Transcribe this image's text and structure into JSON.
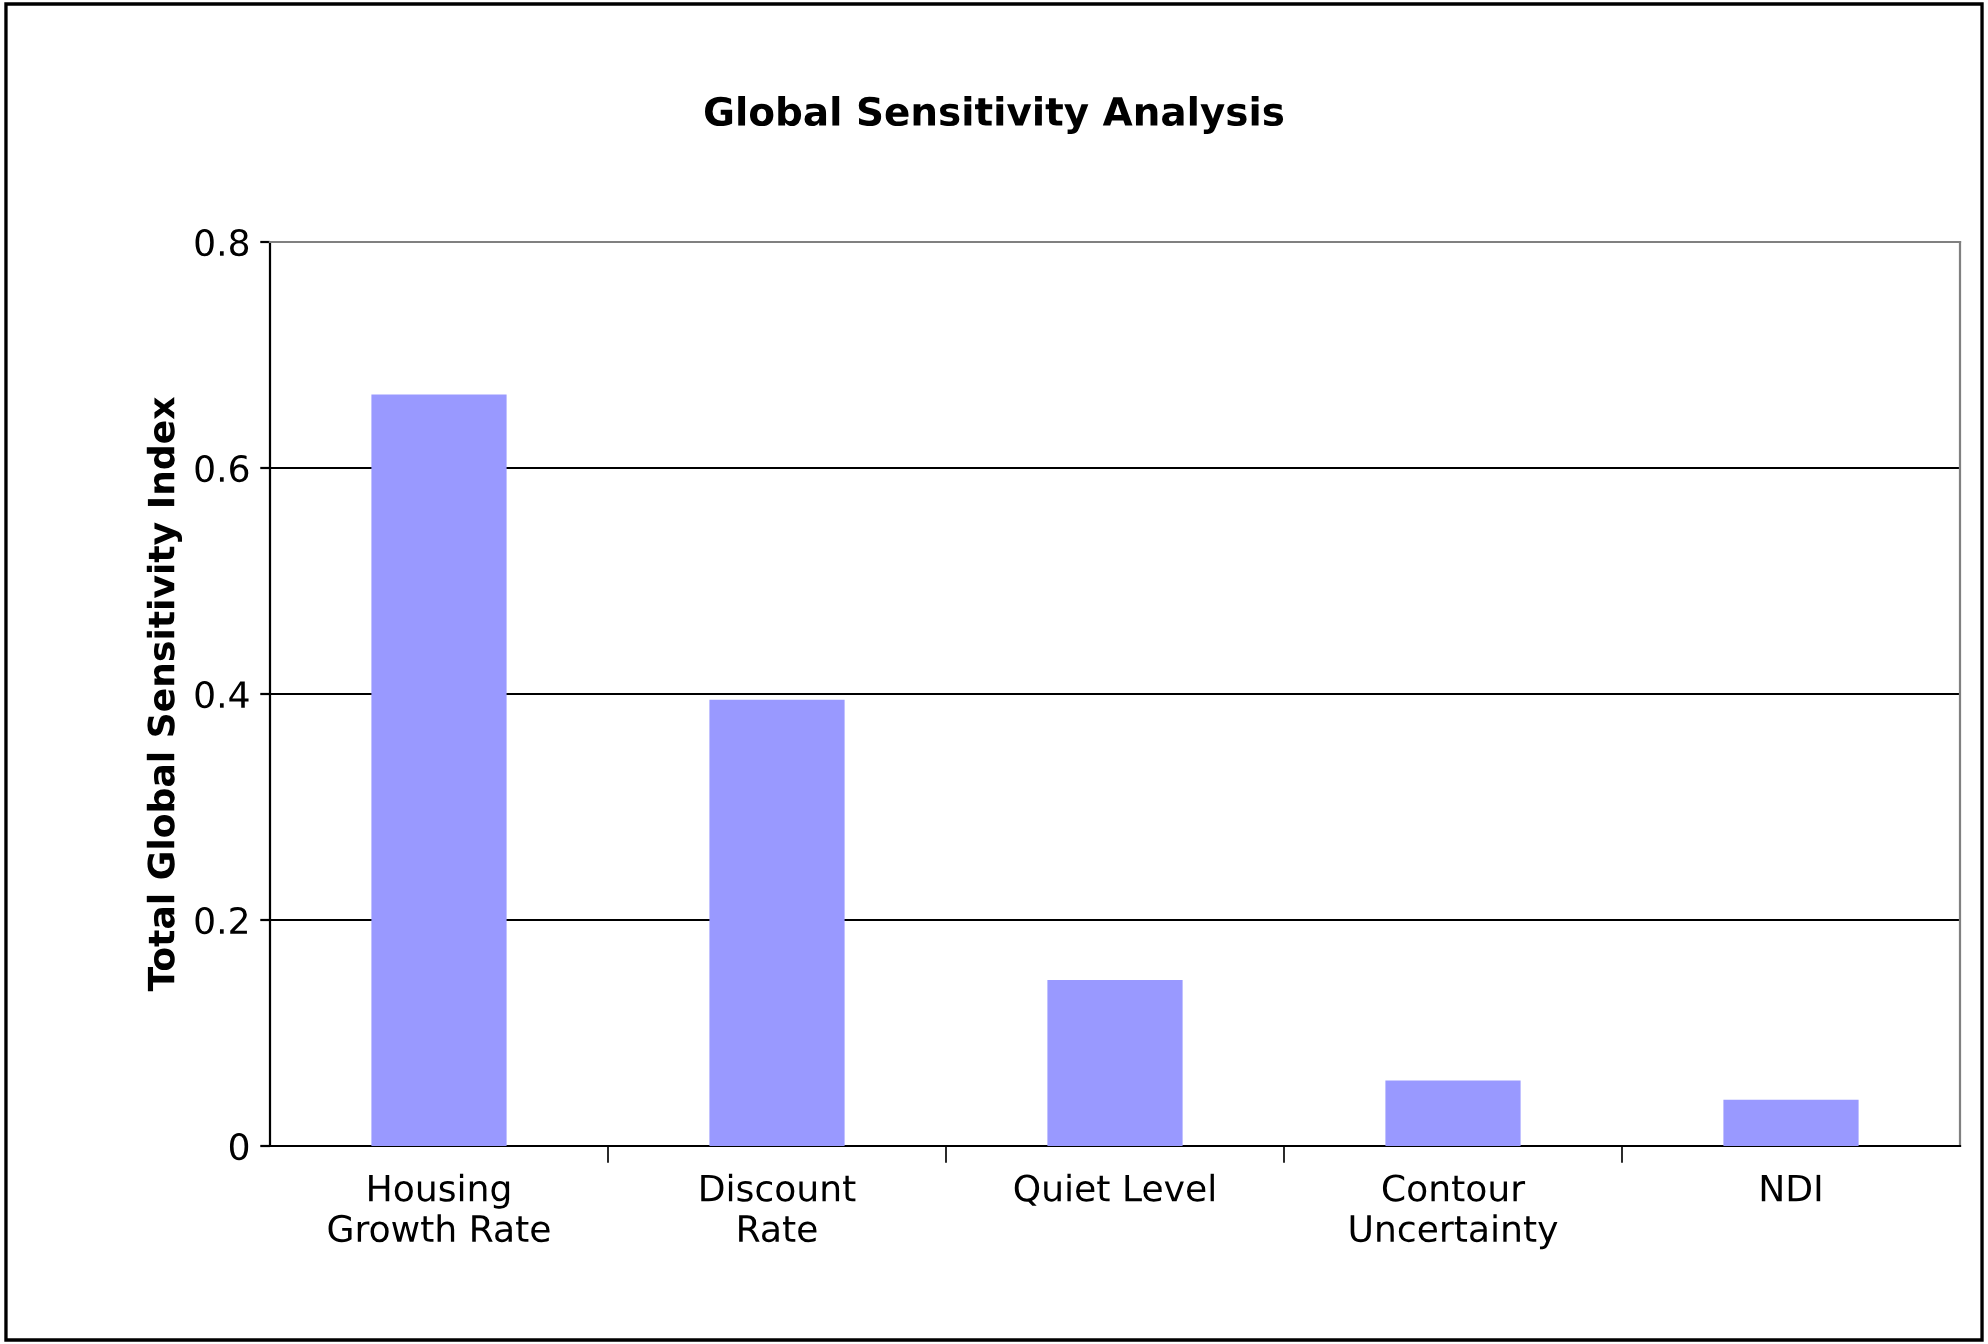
{
  "chart_data": {
    "type": "bar",
    "title": "Global Sensitivity Analysis",
    "ylabel": "Total Global Sensitivity Index",
    "categories": [
      "Housing\nGrowth Rate",
      "Discount\nRate",
      "Quiet Level",
      "Contour\nUncertainty",
      "NDI"
    ],
    "values": [
      0.665,
      0.395,
      0.147,
      0.058,
      0.041
    ],
    "color": "#9999ff",
    "ylim": [
      0,
      0.8
    ],
    "yticks": [
      0,
      0.2,
      0.4,
      0.6,
      0.8
    ],
    "grid": "y",
    "legend": false
  }
}
